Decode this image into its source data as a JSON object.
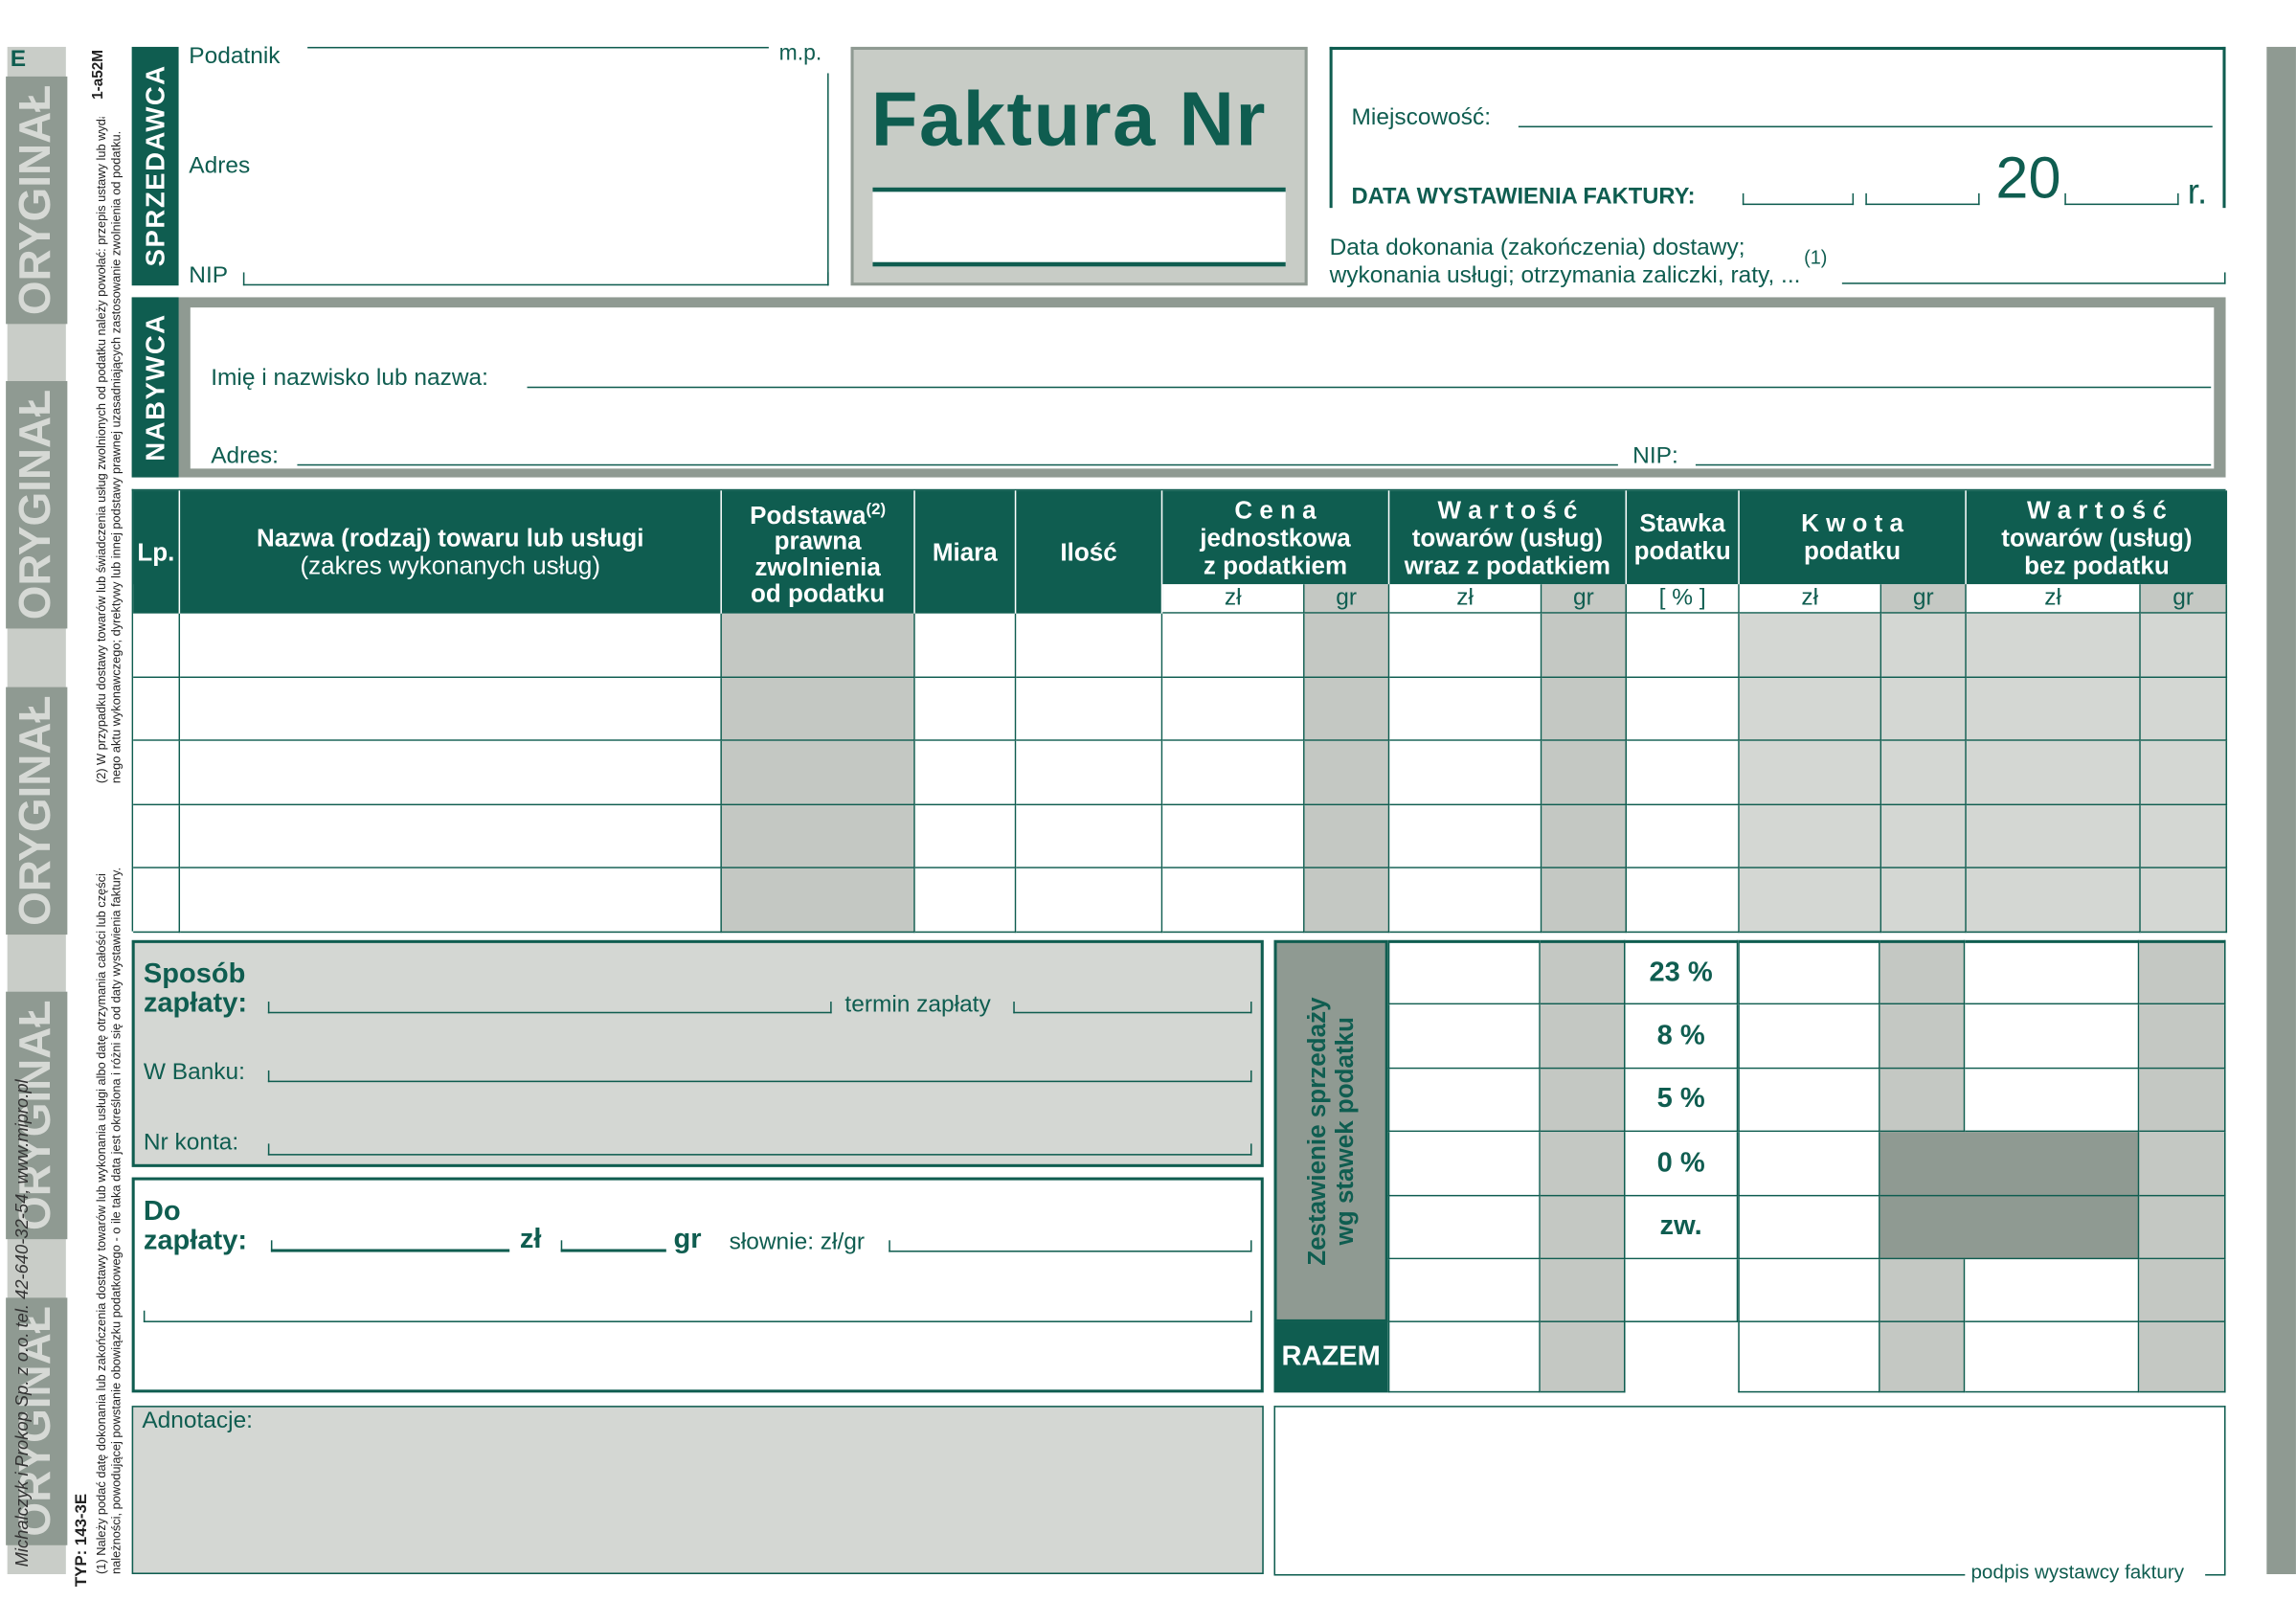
{
  "colors": {
    "green": "#0f5d50",
    "grey": "#c4c8c3",
    "light_grey": "#d4d7d3",
    "dark_grey": "#8f9a92"
  },
  "side": {
    "mark": "E",
    "code": "1-a52M",
    "watermark": [
      "ORYGINAŁ",
      "ORYGINAŁ",
      "ORYGINAŁ",
      "ORYGINAŁ",
      "ORYGINAŁ"
    ],
    "footnote2": "(2) W przypadku dostawy towarów lub świadczenia usług zwolnionych od podatku należy powołać: przepis ustawy lub wyda-",
    "footnote2b": "nego aktu wykonawczego; dyrektywy lub innej podstawy prawnej uzasadniających zastosowanie zwolnienia od podatku.",
    "footnote1": "(1) Należy podać datę dokonania lub zakończenia dostawy towarów lub wykonania usługi albo datę otrzymania całości lub części",
    "footnote1b": "należności, powodującej powstanie obowiązku podatkowego - o ile taka data jest określona i różni się od daty wystawienia faktury.",
    "typ": "TYP: 143-3E",
    "publisher": "Michalczyk i Prokop Sp. z o.o.   tel. 42-640-32-54,  www.mipro.pl"
  },
  "seller": {
    "title": "SPRZEDAWCA",
    "podatnik": "Podatnik",
    "mp": "m.p.",
    "adres": "Adres",
    "nip": "NIP"
  },
  "invoice": {
    "title": "Faktura Nr",
    "number": ""
  },
  "dates": {
    "miejscowosc": "Miejscowość:",
    "data_wystawienia": "DATA WYSTAWIENIA FAKTURY:",
    "year_prefix": "20",
    "year_suffix": "r.",
    "dostawa_1": "Data dokonania (zakończenia) dostawy;",
    "dostawa_2": "wykonania usługi; otrzymania zaliczki, raty, ...",
    "dostawa_ref": "(1)"
  },
  "buyer": {
    "title": "NABYWCA",
    "name": "Imię i nazwisko lub nazwa:",
    "adres": "Adres:",
    "nip": "NIP:"
  },
  "table": {
    "lp": "Lp.",
    "nazwa_1": "Nazwa (rodzaj) towaru lub usługi",
    "nazwa_2": "(zakres wykonanych usług)",
    "podstawa_1": "Podstawa",
    "podstawa_ref": "(2)",
    "podstawa_2": "prawna",
    "podstawa_3": "zwolnienia",
    "podstawa_4": "od podatku",
    "miara": "Miara",
    "ilosc": "Ilość",
    "cena_1": "C e n a",
    "cena_2": "jednostkowa",
    "cena_3": "z podatkiem",
    "wartosc_1": "W a r t o ś ć",
    "wartosc_2": "towarów (usług)",
    "wartosc_3": "wraz z podatkiem",
    "stawka_1": "Stawka",
    "stawka_2": "podatku",
    "kwota_1": "K w o t a",
    "kwota_2": "podatku",
    "bez_1": "W a r t o ś ć",
    "bez_2": "towarów (usług)",
    "bez_3": "bez podatku",
    "zl": "zł",
    "gr": "gr",
    "pct": "[ % ]",
    "rows": 5
  },
  "payment": {
    "sposob_1": "Sposób",
    "sposob_2": "zapłaty:",
    "termin": "termin zapłaty",
    "bank": "W Banku:",
    "konto": "Nr konta:"
  },
  "due": {
    "do_1": "Do",
    "do_2": "zapłaty:",
    "zl": "zł",
    "gr": "gr",
    "slownie": "słownie: zł/gr"
  },
  "summary": {
    "title_1": "Zestawienie sprzedaży",
    "title_2": "wg stawek podatku",
    "rates": [
      "23 %",
      "8 %",
      "5 %",
      "0 %",
      "zw.",
      ""
    ],
    "razem": "RAZEM"
  },
  "notes": {
    "label": "Adnotacje:",
    "signature": "podpis wystawcy faktury"
  }
}
